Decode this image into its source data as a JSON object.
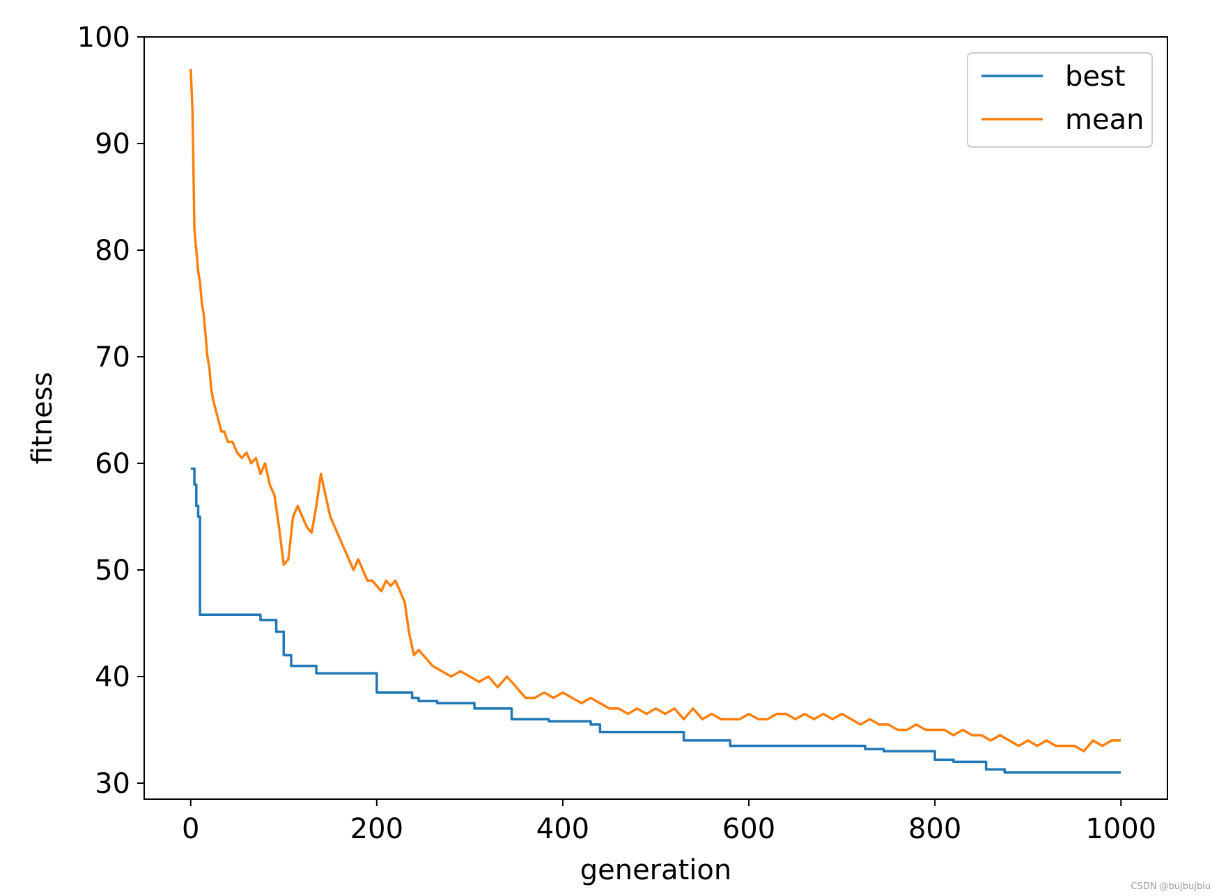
{
  "chart_data": {
    "type": "line",
    "title": "",
    "xlabel": "generation",
    "ylabel": "fitness",
    "xlim": [
      -50,
      1050
    ],
    "ylim": [
      28.5,
      100
    ],
    "x_ticks": [
      0,
      200,
      400,
      600,
      800,
      1000
    ],
    "y_ticks": [
      30,
      40,
      50,
      60,
      70,
      80,
      90,
      100
    ],
    "grid": false,
    "legend_position": "top-right",
    "series": [
      {
        "name": "best",
        "color": "#1f77b4",
        "step": true,
        "x": [
          0,
          4,
          6,
          8,
          10,
          12,
          75,
          92,
          100,
          108,
          135,
          200,
          238,
          245,
          265,
          305,
          345,
          385,
          430,
          440,
          530,
          580,
          725,
          745,
          800,
          820,
          855,
          875,
          1000
        ],
        "y": [
          59.5,
          58,
          56,
          55,
          45.8,
          45.8,
          45.3,
          44.2,
          42,
          41,
          40.3,
          38.5,
          38,
          37.7,
          37.5,
          37,
          36,
          35.8,
          35.5,
          34.8,
          34,
          33.5,
          33.2,
          33,
          32.2,
          32,
          31.3,
          31,
          31
        ]
      },
      {
        "name": "mean",
        "color": "#ff7f0e",
        "x": [
          0,
          2,
          4,
          6,
          8,
          10,
          12,
          14,
          16,
          18,
          20,
          22,
          24,
          27,
          30,
          33,
          36,
          40,
          45,
          50,
          55,
          60,
          65,
          70,
          75,
          80,
          85,
          90,
          95,
          100,
          105,
          110,
          115,
          120,
          125,
          130,
          135,
          140,
          145,
          150,
          155,
          160,
          165,
          170,
          175,
          180,
          185,
          190,
          195,
          200,
          205,
          210,
          215,
          220,
          225,
          230,
          235,
          240,
          245,
          250,
          260,
          270,
          280,
          290,
          300,
          310,
          320,
          330,
          340,
          350,
          360,
          370,
          380,
          390,
          400,
          410,
          420,
          430,
          440,
          450,
          460,
          470,
          480,
          490,
          500,
          510,
          520,
          530,
          540,
          550,
          560,
          570,
          580,
          590,
          600,
          610,
          620,
          630,
          640,
          650,
          660,
          670,
          680,
          690,
          700,
          710,
          720,
          730,
          740,
          750,
          760,
          770,
          780,
          790,
          800,
          810,
          820,
          830,
          840,
          850,
          860,
          870,
          880,
          890,
          900,
          910,
          920,
          930,
          940,
          950,
          960,
          970,
          980,
          990,
          1000
        ],
        "y": [
          97,
          93,
          82,
          80,
          78,
          77,
          75,
          74,
          72,
          70,
          69,
          67,
          66,
          65,
          64,
          63,
          63,
          62,
          62,
          61,
          60.5,
          61,
          60,
          60.5,
          59,
          60,
          58,
          57,
          54,
          50.5,
          51,
          55,
          56,
          55,
          54,
          53.5,
          56,
          59,
          57,
          55,
          54,
          53,
          52,
          51,
          50,
          51,
          50,
          49,
          49,
          48.5,
          48,
          49,
          48.5,
          49,
          48,
          47,
          44,
          42,
          42.5,
          42,
          41,
          40.5,
          40,
          40.5,
          40,
          39.5,
          40,
          39,
          40,
          39,
          38,
          38,
          38.5,
          38,
          38.5,
          38,
          37.5,
          38,
          37.5,
          37,
          37,
          36.5,
          37,
          36.5,
          37,
          36.5,
          37,
          36,
          37,
          36,
          36.5,
          36,
          36,
          36,
          36.5,
          36,
          36,
          36.5,
          36.5,
          36,
          36.5,
          36,
          36.5,
          36,
          36.5,
          36,
          35.5,
          36,
          35.5,
          35.5,
          35,
          35,
          35.5,
          35,
          35,
          35,
          34.5,
          35,
          34.5,
          34.5,
          34,
          34.5,
          34,
          33.5,
          34,
          33.5,
          34,
          33.5,
          33.5,
          33.5,
          33,
          34,
          33.5,
          34,
          34
        ]
      }
    ]
  }
}
